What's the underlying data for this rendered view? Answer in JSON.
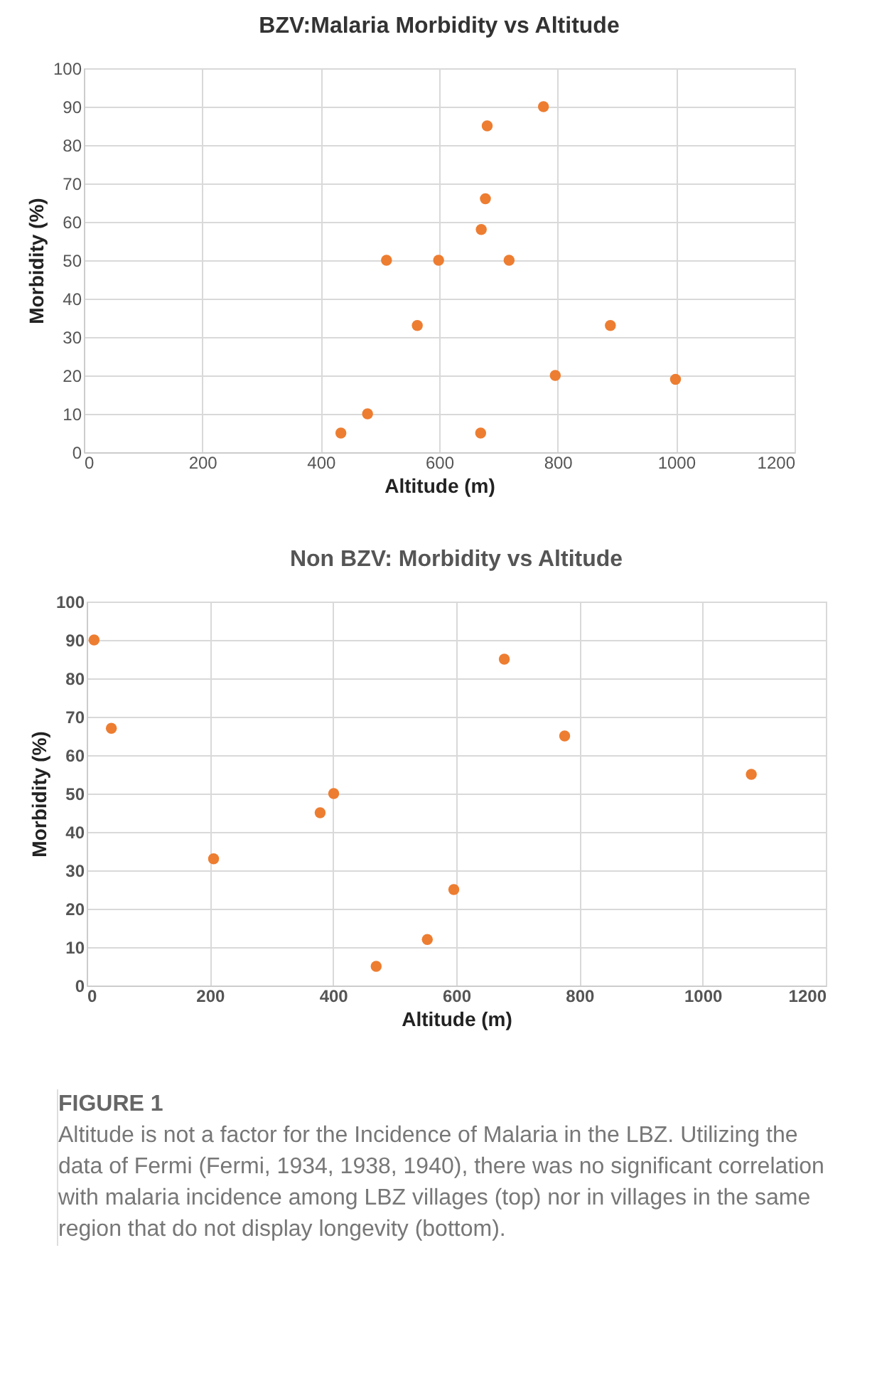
{
  "chart_data": [
    {
      "type": "scatter",
      "title": "BZV:Malaria Morbidity vs Altitude",
      "xlabel": "Altitude (m)",
      "ylabel": "Morbidity (%)",
      "x": [
        434,
        479,
        511,
        563,
        599,
        670,
        671,
        678,
        681,
        718,
        776,
        796,
        889,
        999
      ],
      "series": [
        {
          "color": "#ed7d31",
          "values": [
            5,
            10,
            50,
            33,
            50,
            5,
            58,
            66,
            85,
            50,
            90,
            20,
            33,
            19
          ]
        }
      ],
      "xlim": [
        0,
        1200
      ],
      "xticks": [
        0,
        200,
        400,
        600,
        800,
        1000,
        1200
      ],
      "ylim": [
        0,
        100
      ],
      "yticks": [
        0,
        10,
        20,
        30,
        40,
        50,
        60,
        70,
        80,
        90,
        100
      ],
      "grid": true,
      "marker": "circle"
    },
    {
      "type": "scatter",
      "title": "Non BZV: Morbidity vs Altitude",
      "xlabel": "Altitude (m)",
      "ylabel": "Morbidity (%)",
      "x": [
        12,
        40,
        206,
        379,
        401,
        470,
        553,
        596,
        678,
        776,
        1079
      ],
      "series": [
        {
          "color": "#ed7d31",
          "values": [
            90,
            67,
            33,
            45,
            50,
            5,
            12,
            25,
            85,
            65,
            55
          ]
        }
      ],
      "xlim": [
        0,
        1200
      ],
      "xticks": [
        0,
        200,
        400,
        600,
        800,
        1000,
        1200
      ],
      "ylim": [
        0,
        100
      ],
      "yticks": [
        0,
        10,
        20,
        30,
        40,
        50,
        60,
        70,
        80,
        90,
        100
      ],
      "grid": true,
      "marker": "circle",
      "annotations": [
        "FIGURE 1",
        "Altitude is not a factor for the Incidence of Malaria in the LBZ. Utilizing the data of Fermi (Fermi, 1934, 1938, 1940), there was no significant correlation with malaria incidence among LBZ villages (top) nor in villages in the same region that do not display longevity (bottom)."
      ]
    }
  ]
}
